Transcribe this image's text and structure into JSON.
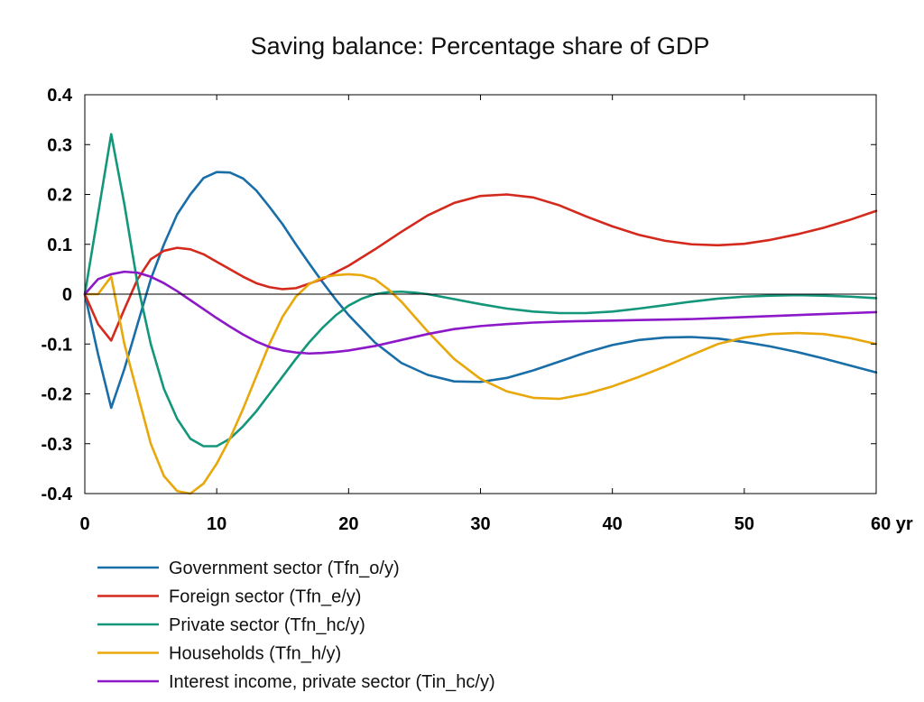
{
  "chart_data": {
    "type": "line",
    "title": "Saving balance: Percentage share of GDP",
    "xlabel": "",
    "ylabel": "",
    "x_unit": "yr",
    "xlim": [
      0,
      60
    ],
    "ylim": [
      -0.4,
      0.4
    ],
    "x_ticks": [
      0,
      10,
      20,
      30,
      40,
      50,
      60
    ],
    "x_tick_labels": [
      "0",
      "10",
      "20",
      "30",
      "40",
      "50",
      "60 yr"
    ],
    "y_ticks": [
      0.4,
      0.3,
      0.2,
      0.1,
      0,
      -0.1,
      -0.2,
      -0.3,
      -0.4
    ],
    "y_tick_labels": [
      "0.4",
      "0.3",
      "0.2",
      "0.1",
      "0",
      "-0.1",
      "-0.2",
      "-0.3",
      "-0.4"
    ],
    "grid": false,
    "zero_line": true,
    "legend_position": "bottom",
    "series": [
      {
        "name": "Government sector (Tfn_o/y)",
        "color": "#1a6ea8",
        "x": [
          0,
          1,
          2,
          3,
          4,
          5,
          6,
          7,
          8,
          9,
          10,
          11,
          12,
          13,
          14,
          15,
          16,
          17,
          18,
          19,
          20,
          22,
          24,
          26,
          28,
          30,
          32,
          34,
          36,
          38,
          40,
          42,
          44,
          46,
          48,
          50,
          52,
          54,
          56,
          58,
          60
        ],
        "y": [
          0,
          -0.12,
          -0.228,
          -0.15,
          -0.06,
          0.03,
          0.1,
          0.16,
          0.2,
          0.233,
          0.245,
          0.244,
          0.232,
          0.208,
          0.175,
          0.14,
          0.1,
          0.062,
          0.025,
          -0.01,
          -0.042,
          -0.097,
          -0.138,
          -0.162,
          -0.175,
          -0.176,
          -0.168,
          -0.153,
          -0.135,
          -0.117,
          -0.102,
          -0.092,
          -0.087,
          -0.086,
          -0.089,
          -0.096,
          -0.105,
          -0.116,
          -0.129,
          -0.143,
          -0.157
        ]
      },
      {
        "name": "Foreign sector (Tfn_e/y)",
        "color": "#d42a1e",
        "x": [
          0,
          1,
          2,
          3,
          4,
          5,
          6,
          7,
          8,
          9,
          10,
          11,
          12,
          13,
          14,
          15,
          16,
          18,
          20,
          22,
          24,
          26,
          28,
          30,
          32,
          34,
          36,
          38,
          40,
          42,
          44,
          46,
          48,
          50,
          52,
          54,
          56,
          58,
          60
        ],
        "y": [
          0,
          -0.06,
          -0.093,
          -0.03,
          0.03,
          0.07,
          0.087,
          0.093,
          0.09,
          0.08,
          0.065,
          0.05,
          0.035,
          0.022,
          0.014,
          0.01,
          0.012,
          0.03,
          0.057,
          0.09,
          0.125,
          0.158,
          0.183,
          0.197,
          0.2,
          0.194,
          0.178,
          0.156,
          0.136,
          0.119,
          0.107,
          0.1,
          0.098,
          0.101,
          0.109,
          0.12,
          0.133,
          0.149,
          0.167
        ]
      },
      {
        "name": "Private sector (Tfn_hc/y)",
        "color": "#14967a",
        "x": [
          0,
          1,
          2,
          3,
          4,
          5,
          6,
          7,
          8,
          9,
          10,
          11,
          12,
          13,
          14,
          15,
          16,
          17,
          18,
          19,
          20,
          21,
          22,
          23,
          24,
          25,
          26,
          28,
          30,
          32,
          34,
          36,
          38,
          40,
          42,
          44,
          46,
          48,
          50,
          52,
          54,
          56,
          58,
          60
        ],
        "y": [
          0,
          0.16,
          0.321,
          0.18,
          0.02,
          -0.1,
          -0.19,
          -0.25,
          -0.29,
          -0.305,
          -0.305,
          -0.29,
          -0.265,
          -0.235,
          -0.2,
          -0.165,
          -0.13,
          -0.097,
          -0.068,
          -0.043,
          -0.023,
          -0.009,
          0,
          0.004,
          0.005,
          0.003,
          0,
          -0.01,
          -0.02,
          -0.029,
          -0.035,
          -0.038,
          -0.038,
          -0.035,
          -0.029,
          -0.022,
          -0.015,
          -0.009,
          -0.005,
          -0.003,
          -0.002,
          -0.003,
          -0.005,
          -0.008
        ]
      },
      {
        "name": "Households (Tfn_h/y)",
        "color": "#e8a80c",
        "x": [
          0,
          1,
          2,
          3,
          4,
          5,
          6,
          7,
          8,
          9,
          10,
          11,
          12,
          13,
          14,
          15,
          16,
          17,
          18,
          19,
          20,
          21,
          22,
          23,
          24,
          25,
          26,
          28,
          30,
          32,
          34,
          36,
          38,
          40,
          42,
          44,
          46,
          48,
          50,
          52,
          54,
          56,
          58,
          60
        ],
        "y": [
          0,
          0,
          0.035,
          -0.1,
          -0.2,
          -0.3,
          -0.365,
          -0.395,
          -0.4,
          -0.38,
          -0.34,
          -0.29,
          -0.23,
          -0.165,
          -0.1,
          -0.045,
          -0.005,
          0.02,
          0.033,
          0.038,
          0.04,
          0.038,
          0.03,
          0.01,
          -0.015,
          -0.045,
          -0.075,
          -0.13,
          -0.17,
          -0.195,
          -0.208,
          -0.21,
          -0.2,
          -0.185,
          -0.166,
          -0.145,
          -0.122,
          -0.1,
          -0.087,
          -0.08,
          -0.078,
          -0.08,
          -0.088,
          -0.1
        ]
      },
      {
        "name": "Interest income, private sector (Tin_hc/y)",
        "color": "#8c18c8",
        "x": [
          0,
          1,
          2,
          3,
          4,
          5,
          6,
          7,
          8,
          9,
          10,
          11,
          12,
          13,
          14,
          15,
          16,
          17,
          18,
          19,
          20,
          22,
          24,
          26,
          28,
          30,
          32,
          34,
          36,
          38,
          40,
          42,
          44,
          46,
          48,
          50,
          52,
          54,
          56,
          58,
          60
        ],
        "y": [
          0,
          0.03,
          0.04,
          0.045,
          0.043,
          0.035,
          0.022,
          0.006,
          -0.012,
          -0.03,
          -0.048,
          -0.065,
          -0.081,
          -0.095,
          -0.106,
          -0.113,
          -0.117,
          -0.119,
          -0.118,
          -0.116,
          -0.113,
          -0.104,
          -0.092,
          -0.08,
          -0.07,
          -0.064,
          -0.06,
          -0.057,
          -0.055,
          -0.054,
          -0.053,
          -0.052,
          -0.051,
          -0.05,
          -0.048,
          -0.046,
          -0.044,
          -0.042,
          -0.04,
          -0.038,
          -0.036
        ]
      }
    ]
  }
}
